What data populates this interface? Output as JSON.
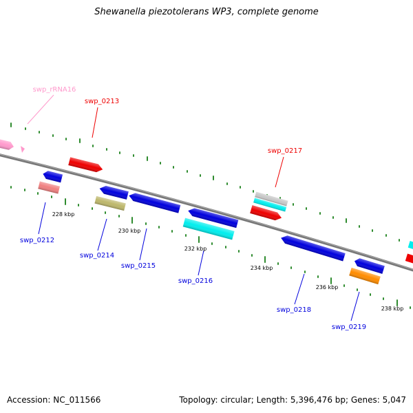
{
  "title": "Shewanella piezotolerans WP3, complete genome",
  "accession": "Accession: NC_011566",
  "topology": "Topology: circular; Length: 5,396,476 bp; Genes: 5,047",
  "colors": {
    "backbone": "#888888",
    "tick": "#2e8b2e",
    "blue": "#0000dd",
    "red": "#ee0000",
    "cyan": "#00eeee",
    "salmon": "#f08080",
    "khaki": "#bdb76b",
    "orange": "#ff8c00",
    "pink": "#ff99cc",
    "gray": "#c8c8c8"
  },
  "ticks": [
    {
      "label": "228 kbp"
    },
    {
      "label": "230 kbp"
    },
    {
      "label": "232 kbp"
    },
    {
      "label": "234 kbp"
    },
    {
      "label": "236 kbp"
    },
    {
      "label": "238 kbp"
    }
  ],
  "genes": [
    {
      "label": "swp_rRNA16",
      "color": "pink"
    },
    {
      "label": "swp_0212",
      "color": "blue"
    },
    {
      "label": "swp_0213",
      "color": "red"
    },
    {
      "label": "swp_0214",
      "color": "blue"
    },
    {
      "label": "swp_0215",
      "color": "blue"
    },
    {
      "label": "swp_0216",
      "color": "blue"
    },
    {
      "label": "swp_0217",
      "color": "red"
    },
    {
      "label": "swp_0218",
      "color": "blue"
    },
    {
      "label": "swp_0219",
      "color": "blue"
    }
  ]
}
